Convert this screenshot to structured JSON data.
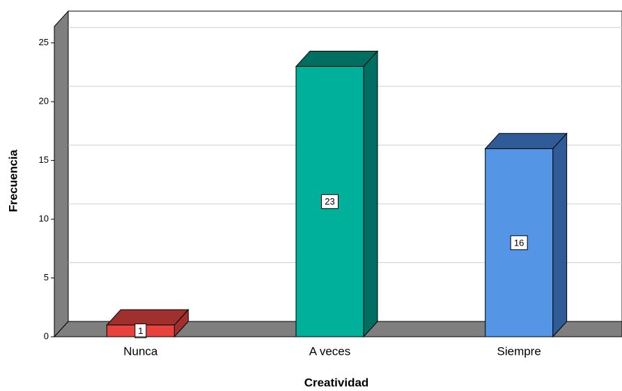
{
  "chart_data": {
    "type": "bar3d",
    "x_label": "Creatividad",
    "y_label": "Frecuencia",
    "categories": [
      "Nunca",
      "A veces",
      "Siempre"
    ],
    "values": [
      1,
      23,
      16
    ],
    "colors": [
      "#e8423f",
      "#00b09b",
      "#5595e5"
    ],
    "side_colors": [
      "#a0302d",
      "#006e60",
      "#2f5b96"
    ],
    "ylim": [
      0,
      26.4
    ],
    "yticks": [
      0,
      5,
      10,
      15,
      20,
      25
    ],
    "grid": true
  }
}
